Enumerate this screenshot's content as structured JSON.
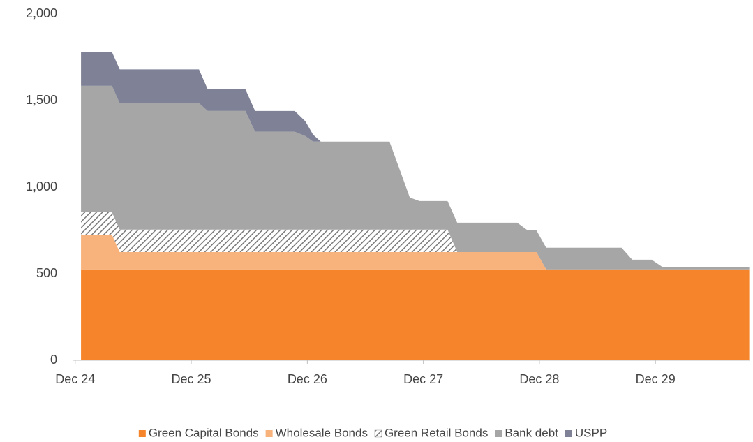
{
  "chart_data": {
    "type": "area",
    "stacked": true,
    "x": [
      0.6,
      3.8,
      4.6,
      12.8,
      13.7,
      17.6,
      18.6,
      22.7,
      23.8,
      24.6,
      25.4,
      32.5,
      33.5,
      34.6,
      35.6,
      36.7,
      38.5,
      39.5,
      45.7,
      46.8,
      47.7,
      48.7,
      56.5,
      57.6,
      59.6,
      60.7,
      69.7
    ],
    "series": [
      {
        "name": "Green Capital Bonds",
        "color": "#f5842a",
        "values": [
          525,
          525,
          525,
          525,
          525,
          525,
          525,
          525,
          525,
          525,
          525,
          525,
          525,
          525,
          525,
          525,
          525,
          525,
          525,
          525,
          525,
          525,
          525,
          525,
          525,
          525,
          525
        ]
      },
      {
        "name": "Wholesale Bonds",
        "color": "#f8b27c",
        "values": [
          200,
          200,
          100,
          100,
          100,
          100,
          100,
          100,
          100,
          100,
          100,
          100,
          100,
          100,
          100,
          100,
          100,
          100,
          100,
          100,
          100,
          0,
          0,
          0,
          0,
          0,
          0
        ]
      },
      {
        "name": "Green Retail Bonds",
        "color": "#8c8c8c",
        "pattern": "hatch",
        "values": [
          130,
          130,
          130,
          130,
          130,
          130,
          130,
          130,
          130,
          130,
          130,
          130,
          130,
          130,
          130,
          130,
          130,
          0,
          0,
          0,
          0,
          0,
          0,
          0,
          0,
          0,
          0
        ]
      },
      {
        "name": "Bank debt",
        "color": "#a6a6a6",
        "values": [
          730,
          730,
          730,
          730,
          685,
          685,
          565,
          565,
          540,
          508,
          508,
          508,
          355,
          185,
          165,
          165,
          165,
          170,
          170,
          125,
          125,
          125,
          125,
          56,
          56,
          15,
          15
        ]
      },
      {
        "name": "USPP",
        "color": "#7f8296",
        "values": [
          195,
          195,
          195,
          195,
          125,
          125,
          120,
          120,
          85,
          40,
          0,
          0,
          0,
          0,
          0,
          0,
          0,
          0,
          0,
          0,
          0,
          0,
          0,
          0,
          0,
          0,
          0
        ]
      }
    ],
    "xlim": [
      -0.2,
      69.8
    ],
    "xticks": [
      {
        "value": 0,
        "label": "Dec 24"
      },
      {
        "value": 12,
        "label": "Dec 25"
      },
      {
        "value": 24,
        "label": "Dec 26"
      },
      {
        "value": 36,
        "label": "Dec 27"
      },
      {
        "value": 48,
        "label": "Dec 28"
      },
      {
        "value": 60,
        "label": "Dec 29"
      }
    ],
    "ylim": [
      0,
      2000
    ],
    "yticks": [
      0,
      500,
      {
        "value": 1000,
        "label": "1,000"
      },
      {
        "value": 1500,
        "label": "1,500"
      },
      {
        "value": 2000,
        "label": "2,000"
      }
    ],
    "grid": false,
    "legend": "bottom"
  }
}
